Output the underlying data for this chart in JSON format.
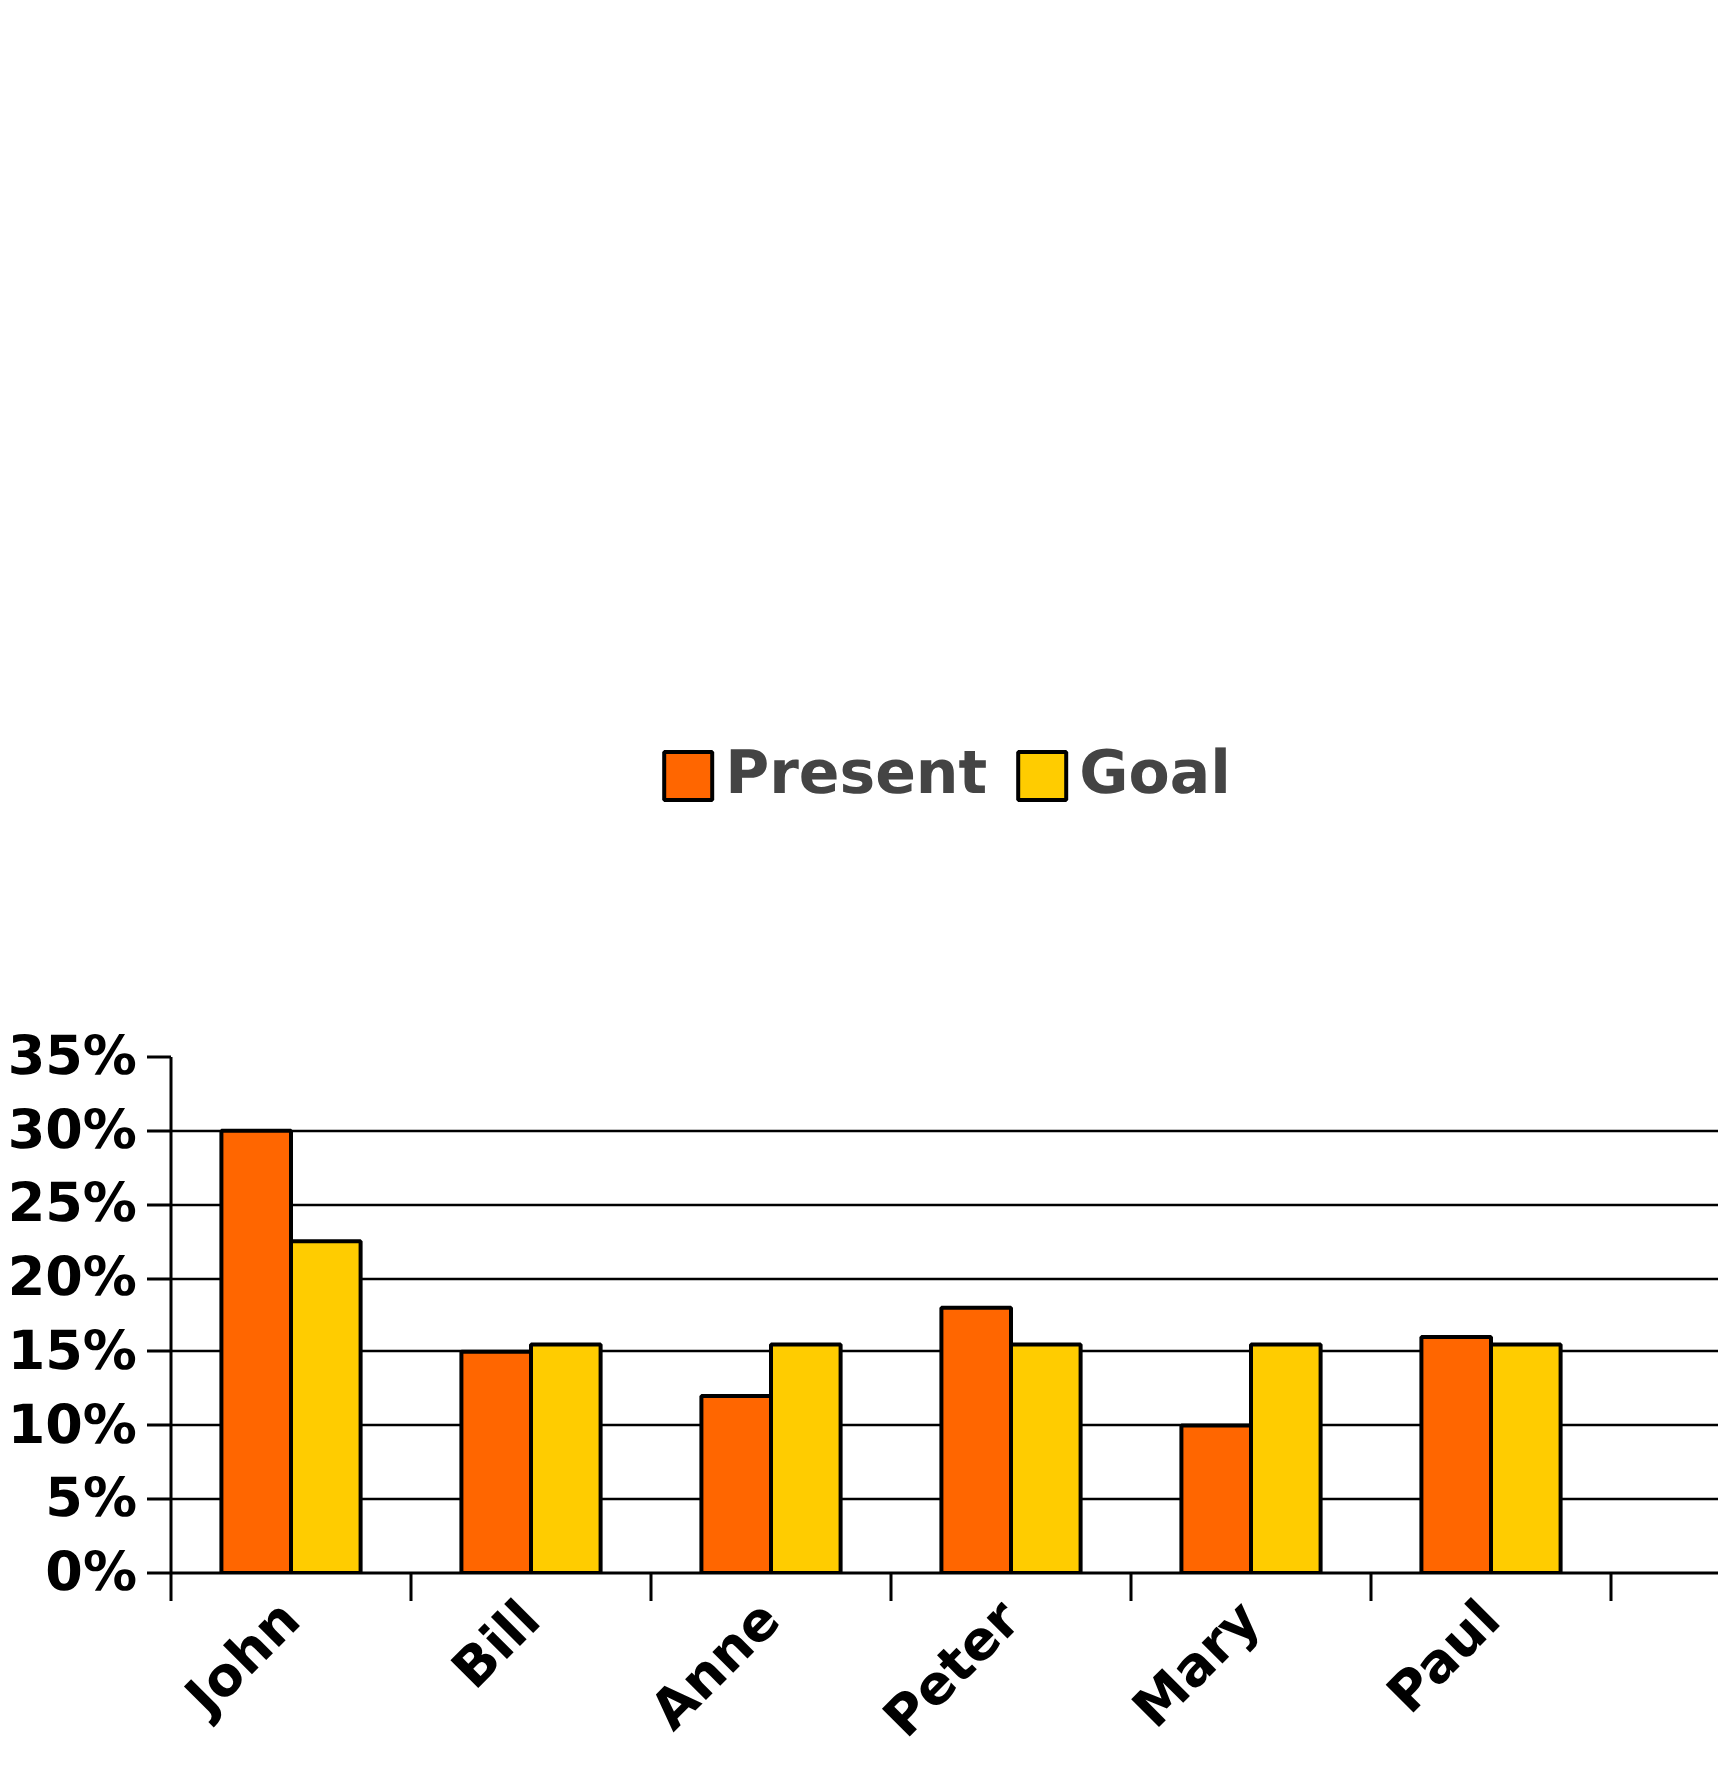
{
  "chart_data": {
    "type": "bar",
    "categories": [
      "John",
      "Bill",
      "Anne",
      "Peter",
      "Mary",
      "Paul"
    ],
    "series": [
      {
        "name": "Present",
        "color": "#ff6600",
        "values": [
          30,
          15,
          12,
          18,
          10,
          16
        ]
      },
      {
        "name": "Goal",
        "color": "#ffcc00",
        "values": [
          22.5,
          15.5,
          15.5,
          15.5,
          15.5,
          15.5
        ]
      }
    ],
    "ylim": [
      0,
      35
    ],
    "yticks": [
      {
        "value": 0,
        "label": "0%"
      },
      {
        "value": 5,
        "label": "5%"
      },
      {
        "value": 10,
        "label": "10%"
      },
      {
        "value": 15,
        "label": "15%"
      },
      {
        "value": 20,
        "label": "20%"
      },
      {
        "value": 25,
        "label": "25%"
      },
      {
        "value": 30,
        "label": "30%"
      },
      {
        "value": 35,
        "label": "35%"
      }
    ],
    "grid": "y",
    "legend": "top"
  }
}
